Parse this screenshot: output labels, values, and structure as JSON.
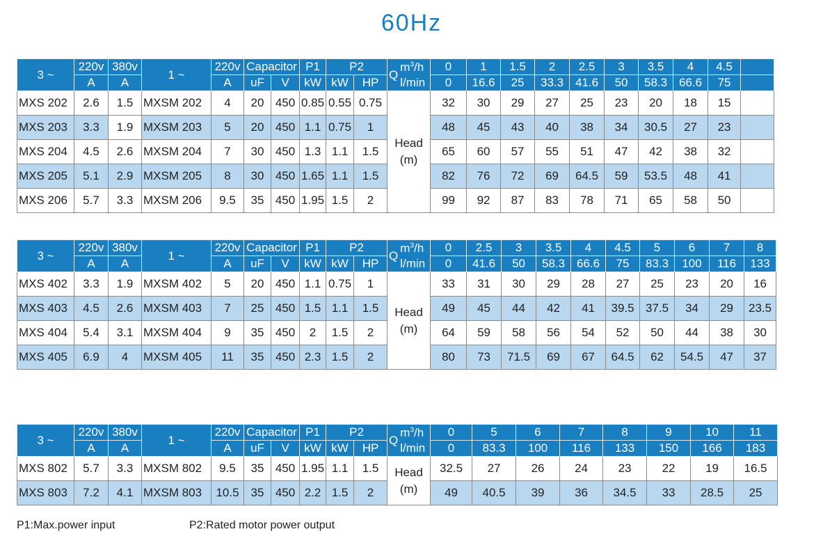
{
  "title": "60Hz",
  "header": {
    "phase3": "3 ~",
    "v220": "220v",
    "v380": "380v",
    "unitA": "A",
    "phase1": "1 ~",
    "capacitor": "Capacitor",
    "uF": "uF",
    "V": "V",
    "p1": "P1",
    "kW": "kW",
    "p2": "P2",
    "HP": "HP",
    "q": "Q",
    "m3h_base": "m",
    "m3h_sup": "3",
    "m3h_tail": "/h",
    "lmin": "l/min"
  },
  "head_label": {
    "line1": "Head",
    "line2": "(m)"
  },
  "tables": [
    {
      "flow_m3h": [
        "0",
        "1",
        "1.5",
        "2",
        "2.5",
        "3",
        "3.5",
        "4",
        "4.5",
        ""
      ],
      "flow_lmin": [
        "0",
        "16.6",
        "25",
        "33.3",
        "41.6",
        "50",
        "58.3",
        "66.6",
        "75",
        ""
      ],
      "rows": [
        [
          "MXS 202",
          "2.6",
          "1.5",
          "MXSM 202",
          "4",
          "20",
          "450",
          "0.85",
          "0.55",
          "0.75",
          "32",
          "30",
          "29",
          "27",
          "25",
          "23",
          "20",
          "18",
          "15",
          ""
        ],
        [
          "MXS 203",
          "3.3",
          "1.9",
          "MXSM 203",
          "5",
          "20",
          "450",
          "1.1",
          "0.75",
          "1",
          "48",
          "45",
          "43",
          "40",
          "38",
          "34",
          "30.5",
          "27",
          "23",
          ""
        ],
        [
          "MXS 204",
          "4.5",
          "2.6",
          "MXSM 204",
          "7",
          "30",
          "450",
          "1.3",
          "1.1",
          "1.5",
          "65",
          "60",
          "57",
          "55",
          "51",
          "47",
          "42",
          "38",
          "32",
          ""
        ],
        [
          "MXS 205",
          "5.1",
          "2.9",
          "MXSM 205",
          "8",
          "30",
          "450",
          "1.65",
          "1.1",
          "1.5",
          "82",
          "76",
          "72",
          "69",
          "64.5",
          "59",
          "53.5",
          "48",
          "41",
          ""
        ],
        [
          "MXS 206",
          "5.7",
          "3.3",
          "MXSM 206",
          "9.5",
          "35",
          "450",
          "1.95",
          "1.5",
          "2",
          "99",
          "92",
          "87",
          "83",
          "78",
          "71",
          "65",
          "58",
          "50",
          ""
        ]
      ]
    },
    {
      "flow_m3h": [
        "0",
        "2.5",
        "3",
        "3.5",
        "4",
        "4.5",
        "5",
        "6",
        "7",
        "8"
      ],
      "flow_lmin": [
        "0",
        "41.6",
        "50",
        "58.3",
        "66.6",
        "75",
        "83.3",
        "100",
        "116",
        "133"
      ],
      "rows": [
        [
          "MXS 402",
          "3.3",
          "1.9",
          "MXSM 402",
          "5",
          "20",
          "450",
          "1.1",
          "0.75",
          "1",
          "33",
          "31",
          "30",
          "29",
          "28",
          "27",
          "25",
          "23",
          "20",
          "16"
        ],
        [
          "MXS 403",
          "4.5",
          "2.6",
          "MXSM 403",
          "7",
          "25",
          "450",
          "1.5",
          "1.1",
          "1.5",
          "49",
          "45",
          "44",
          "42",
          "41",
          "39.5",
          "37.5",
          "34",
          "29",
          "23.5"
        ],
        [
          "MXS 404",
          "5.4",
          "3.1",
          "MXSM 404",
          "9",
          "35",
          "450",
          "2",
          "1.5",
          "2",
          "64",
          "59",
          "58",
          "56",
          "54",
          "52",
          "50",
          "44",
          "38",
          "30"
        ],
        [
          "MXS 405",
          "6.9",
          "4",
          "MXSM 405",
          "11",
          "35",
          "450",
          "2.3",
          "1.5",
          "2",
          "80",
          "73",
          "71.5",
          "69",
          "67",
          "64.5",
          "62",
          "54.5",
          "47",
          "37"
        ]
      ]
    },
    {
      "flow_m3h": [
        "0",
        "5",
        "6",
        "7",
        "8",
        "9",
        "10",
        "11"
      ],
      "flow_lmin": [
        "0",
        "83.3",
        "100",
        "116",
        "133",
        "150",
        "166",
        "183"
      ],
      "rows": [
        [
          "MXS 802",
          "5.7",
          "3.3",
          "MXSM 802",
          "9.5",
          "35",
          "450",
          "1.95",
          "1.1",
          "1.5",
          "32.5",
          "27",
          "26",
          "24",
          "23",
          "22",
          "19",
          "16.5"
        ],
        [
          "MXS 803",
          "7.2",
          "4.1",
          "MXSM 803",
          "10.5",
          "35",
          "450",
          "2.2",
          "1.5",
          "2",
          "49",
          "40.5",
          "39",
          "36",
          "34.5",
          "33",
          "28.5",
          "25"
        ]
      ]
    }
  ],
  "notes": {
    "p1": "P1:Max.power input",
    "p2": "P2:Rated motor power output"
  }
}
